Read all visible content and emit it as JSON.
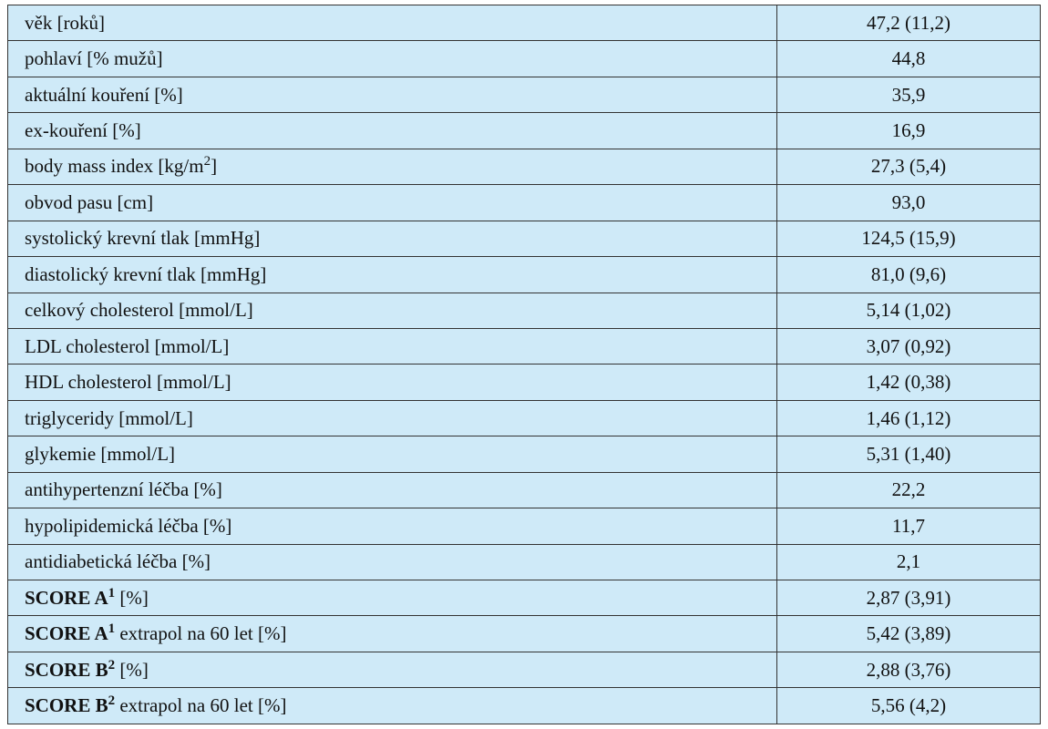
{
  "table": {
    "rows": [
      {
        "label": [
          {
            "text": "věk [roků]"
          }
        ],
        "value": "47,2 (11,2)"
      },
      {
        "label": [
          {
            "text": "pohlaví [% mužů]"
          }
        ],
        "value": "44,8"
      },
      {
        "label": [
          {
            "text": "aktuální kouření [%]"
          }
        ],
        "value": "35,9"
      },
      {
        "label": [
          {
            "text": "ex-kouření [%]"
          }
        ],
        "value": "16,9"
      },
      {
        "label": [
          {
            "text": "body mass index [kg/m"
          },
          {
            "text": "2",
            "sup": true
          },
          {
            "text": "]"
          }
        ],
        "value": "27,3 (5,4)"
      },
      {
        "label": [
          {
            "text": "obvod pasu [cm]"
          }
        ],
        "value": "93,0"
      },
      {
        "label": [
          {
            "text": "systolický krevní tlak [mmHg]"
          }
        ],
        "value": "124,5 (15,9)"
      },
      {
        "label": [
          {
            "text": "diastolický krevní tlak [mmHg]"
          }
        ],
        "value": "81,0 (9,6)"
      },
      {
        "label": [
          {
            "text": "celkový cholesterol [mmol/L]"
          }
        ],
        "value": "5,14 (1,02)"
      },
      {
        "label": [
          {
            "text": "LDL cholesterol [mmol/L]"
          }
        ],
        "value": "3,07 (0,92)"
      },
      {
        "label": [
          {
            "text": "HDL cholesterol [mmol/L]"
          }
        ],
        "value": "1,42 (0,38)"
      },
      {
        "label": [
          {
            "text": "triglyceridy [mmol/L]"
          }
        ],
        "value": "1,46 (1,12)"
      },
      {
        "label": [
          {
            "text": "glykemie [mmol/L]"
          }
        ],
        "value": "5,31 (1,40)"
      },
      {
        "label": [
          {
            "text": "antihypertenzní léčba [%]"
          }
        ],
        "value": "22,2"
      },
      {
        "label": [
          {
            "text": "hypolipidemická léčba [%]"
          }
        ],
        "value": "11,7"
      },
      {
        "label": [
          {
            "text": "antidiabetická léčba [%]"
          }
        ],
        "value": "2,1"
      },
      {
        "label": [
          {
            "text": "SCORE A",
            "bold": true
          },
          {
            "text": "1",
            "bold": true,
            "sup": true
          },
          {
            "text": " [%]"
          }
        ],
        "value": "2,87 (3,91)"
      },
      {
        "label": [
          {
            "text": "SCORE A",
            "bold": true
          },
          {
            "text": "1",
            "bold": true,
            "sup": true
          },
          {
            "text": " extrapol na 60 let [%]"
          }
        ],
        "value": "5,42 (3,89)"
      },
      {
        "label": [
          {
            "text": "SCORE B",
            "bold": true
          },
          {
            "text": "2",
            "bold": true,
            "sup": true
          },
          {
            "text": " [%]"
          }
        ],
        "value": "2,88 (3,76)"
      },
      {
        "label": [
          {
            "text": "SCORE B",
            "bold": true
          },
          {
            "text": "2",
            "bold": true,
            "sup": true
          },
          {
            "text": " extrapol na 60 let [%]"
          }
        ],
        "value": "5,56 (4,2)"
      }
    ]
  }
}
